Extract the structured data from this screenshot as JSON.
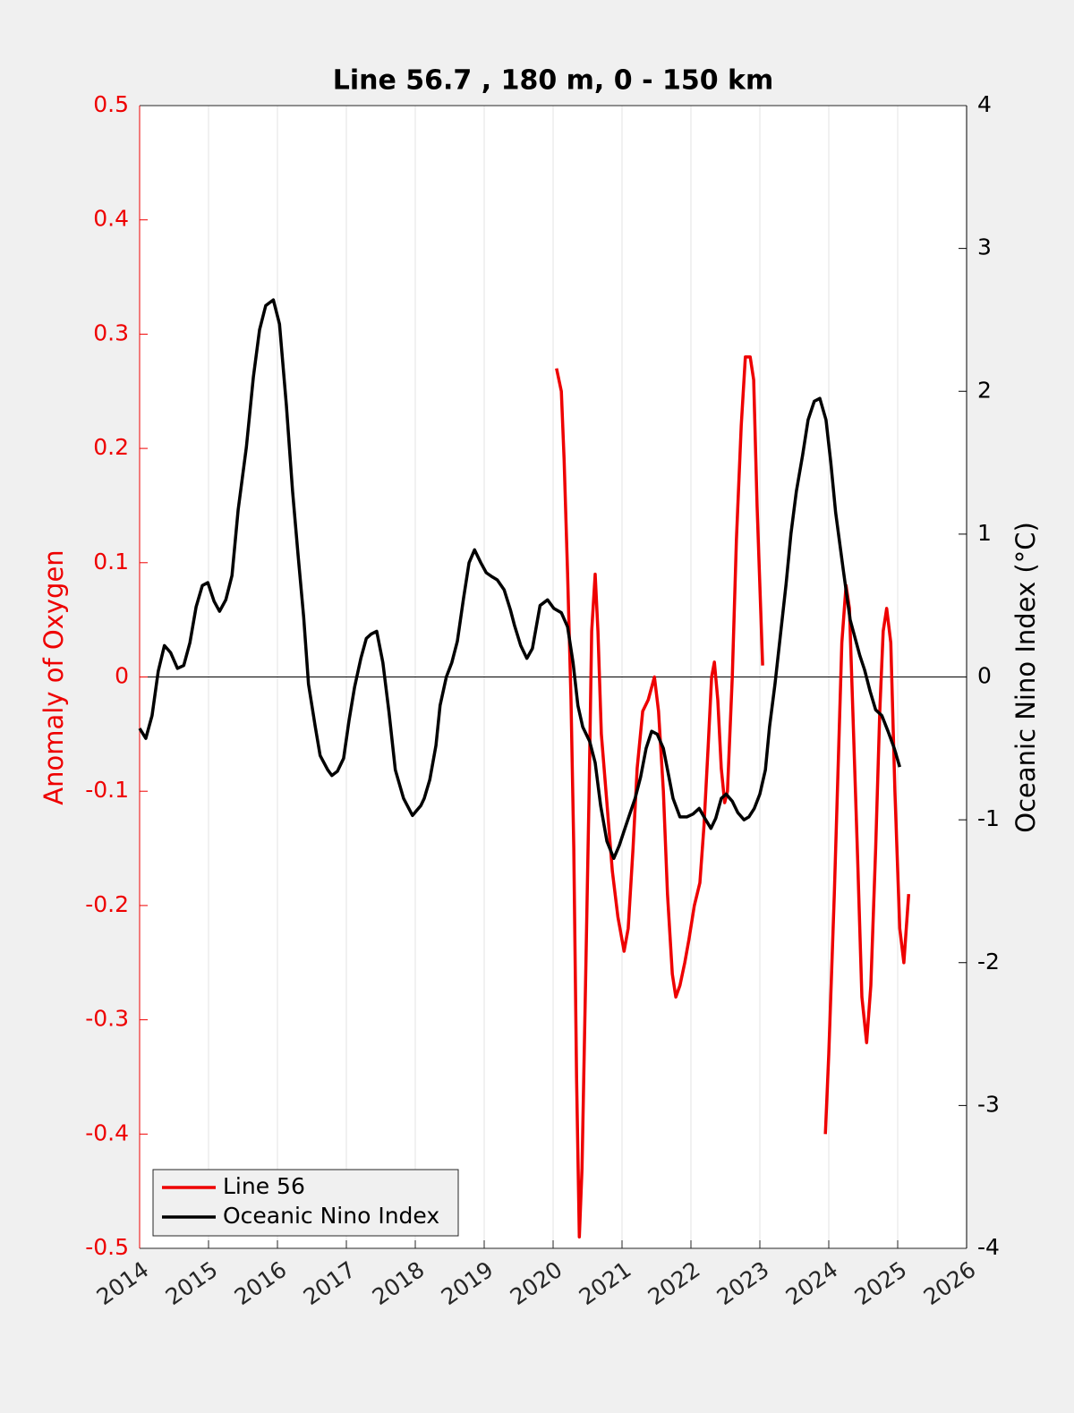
{
  "chart_data": {
    "type": "line",
    "title": "Line 56.7 , 180 m, 0 - 150 km",
    "ylabel": "Anomaly of Oxygen",
    "y2label": "Oceanic Nino Index (°C)",
    "xlim": [
      2014,
      2026
    ],
    "xticks": [
      2014,
      2015,
      2016,
      2017,
      2018,
      2019,
      2020,
      2021,
      2022,
      2023,
      2024,
      2025,
      2026
    ],
    "ylim": [
      -0.5,
      0.5
    ],
    "yticks": [
      -0.5,
      -0.4,
      -0.3,
      -0.2,
      -0.1,
      0,
      0.1,
      0.2,
      0.3,
      0.4,
      0.5
    ],
    "y2lim": [
      -4,
      4
    ],
    "y2ticks": [
      -4,
      -3,
      -2,
      -1,
      0,
      1,
      2,
      3,
      4
    ],
    "grid": true,
    "legend": "lower left",
    "series": [
      {
        "name": "Line 56",
        "color": "#ee0000",
        "axis": "y",
        "x": [
          2020.05,
          2020.12,
          2020.16,
          2020.21,
          2020.26,
          2020.3,
          2020.34,
          2020.38,
          2020.42,
          2020.47,
          2020.52,
          2020.56,
          2020.61,
          2020.65,
          2020.7,
          2020.78,
          2020.86,
          2020.94,
          2021.03,
          2021.09,
          2021.16,
          2021.22,
          2021.3,
          2021.38,
          2021.47,
          2021.53,
          2021.6,
          2021.66,
          2021.73,
          2021.78,
          2021.84,
          2021.91,
          2021.97,
          2022.05,
          2022.13,
          2022.19,
          2022.25,
          2022.3,
          2022.34,
          2022.39,
          2022.44,
          2022.49,
          2022.53,
          2022.6,
          2022.66,
          2022.73,
          2022.79,
          2022.86,
          2022.91,
          2022.96,
          2023.04,
          null,
          2023.95,
          2024.0,
          2024.08,
          2024.14,
          2024.19,
          2024.25,
          2024.3,
          2024.35,
          2024.42,
          2024.48,
          2024.55,
          2024.61,
          2024.68,
          2024.74,
          2024.79,
          2024.84,
          2024.9,
          2024.96,
          2025.03,
          2025.09,
          2025.16
        ],
        "values": [
          0.27,
          0.25,
          0.19,
          0.09,
          -0.02,
          -0.15,
          -0.35,
          -0.49,
          -0.43,
          -0.27,
          -0.11,
          0.04,
          0.09,
          0.04,
          -0.05,
          -0.11,
          -0.17,
          -0.21,
          -0.24,
          -0.22,
          -0.15,
          -0.08,
          -0.03,
          -0.02,
          0.0,
          -0.03,
          -0.1,
          -0.19,
          -0.26,
          -0.28,
          -0.27,
          -0.25,
          -0.23,
          -0.2,
          -0.18,
          -0.13,
          -0.06,
          0.0,
          0.013,
          -0.02,
          -0.08,
          -0.11,
          -0.1,
          0.0,
          0.12,
          0.22,
          0.28,
          0.28,
          0.26,
          0.15,
          0.01,
          null,
          -0.4,
          -0.33,
          -0.19,
          -0.07,
          0.03,
          0.08,
          0.06,
          -0.03,
          -0.16,
          -0.28,
          -0.32,
          -0.27,
          -0.15,
          -0.03,
          0.04,
          0.06,
          0.03,
          -0.1,
          -0.22,
          -0.25,
          -0.19
        ]
      },
      {
        "name": "Oceanic Nino Index",
        "color": "#000000",
        "axis": "y2",
        "x": [
          2014.0,
          2014.09,
          2014.18,
          2014.27,
          2014.36,
          2014.45,
          2014.55,
          2014.64,
          2014.73,
          2014.82,
          2014.91,
          2014.99,
          2015.08,
          2015.16,
          2015.25,
          2015.34,
          2015.43,
          2015.55,
          2015.65,
          2015.74,
          2015.83,
          2015.94,
          2016.03,
          2016.13,
          2016.22,
          2016.3,
          2016.38,
          2016.45,
          2016.55,
          2016.62,
          2016.73,
          2016.79,
          2016.87,
          2016.96,
          2017.04,
          2017.12,
          2017.21,
          2017.29,
          2017.36,
          2017.44,
          2017.53,
          2017.62,
          2017.71,
          2017.83,
          2017.96,
          2018.08,
          2018.13,
          2018.21,
          2018.3,
          2018.36,
          2018.45,
          2018.53,
          2018.61,
          2018.7,
          2018.78,
          2018.86,
          2018.95,
          2019.03,
          2019.12,
          2019.19,
          2019.29,
          2019.38,
          2019.44,
          2019.53,
          2019.62,
          2019.7,
          2019.81,
          2019.92,
          2020.01,
          2020.12,
          2020.21,
          2020.29,
          2020.36,
          2020.43,
          2020.53,
          2020.61,
          2020.69,
          2020.78,
          2020.88,
          2020.96,
          2021.05,
          2021.12,
          2021.19,
          2021.27,
          2021.35,
          2021.43,
          2021.51,
          2021.6,
          2021.68,
          2021.74,
          2021.84,
          2021.94,
          2022.03,
          2022.12,
          2022.19,
          2022.29,
          2022.36,
          2022.44,
          2022.51,
          2022.6,
          2022.68,
          2022.77,
          2022.84,
          2022.92,
          2023.0,
          2023.08,
          2023.14,
          2023.22,
          2023.3,
          2023.38,
          2023.45,
          2023.53,
          2023.62,
          2023.7,
          2023.79,
          2023.87,
          2023.96,
          2024.03,
          2024.1,
          2024.21,
          2024.31,
          2024.45,
          2024.52,
          2024.6,
          2024.68,
          2024.77,
          2024.86,
          2024.95,
          2025.03
        ],
        "values": [
          -0.36,
          -0.43,
          -0.27,
          0.04,
          0.22,
          0.17,
          0.06,
          0.08,
          0.24,
          0.49,
          0.64,
          0.66,
          0.53,
          0.46,
          0.54,
          0.71,
          1.17,
          1.61,
          2.1,
          2.43,
          2.6,
          2.64,
          2.47,
          1.9,
          1.3,
          0.85,
          0.42,
          -0.05,
          -0.35,
          -0.55,
          -0.65,
          -0.69,
          -0.66,
          -0.57,
          -0.3,
          -0.07,
          0.13,
          0.27,
          0.3,
          0.32,
          0.1,
          -0.25,
          -0.65,
          -0.85,
          -0.97,
          -0.9,
          -0.85,
          -0.72,
          -0.48,
          -0.2,
          0.0,
          0.1,
          0.25,
          0.55,
          0.8,
          0.89,
          0.8,
          0.73,
          0.7,
          0.68,
          0.61,
          0.47,
          0.36,
          0.22,
          0.13,
          0.2,
          0.5,
          0.54,
          0.48,
          0.45,
          0.35,
          0.1,
          -0.2,
          -0.35,
          -0.45,
          -0.6,
          -0.9,
          -1.15,
          -1.27,
          -1.18,
          -1.05,
          -0.95,
          -0.85,
          -0.7,
          -0.5,
          -0.38,
          -0.4,
          -0.5,
          -0.7,
          -0.85,
          -0.98,
          -0.98,
          -0.96,
          -0.92,
          -0.98,
          -1.06,
          -0.99,
          -0.85,
          -0.82,
          -0.87,
          -0.95,
          -1.0,
          -0.98,
          -0.92,
          -0.82,
          -0.65,
          -0.35,
          -0.05,
          0.3,
          0.65,
          1.0,
          1.3,
          1.55,
          1.8,
          1.93,
          1.95,
          1.8,
          1.5,
          1.15,
          0.75,
          0.4,
          0.15,
          0.05,
          -0.1,
          -0.23,
          -0.27,
          -0.38,
          -0.5,
          -0.63
        ]
      }
    ]
  }
}
